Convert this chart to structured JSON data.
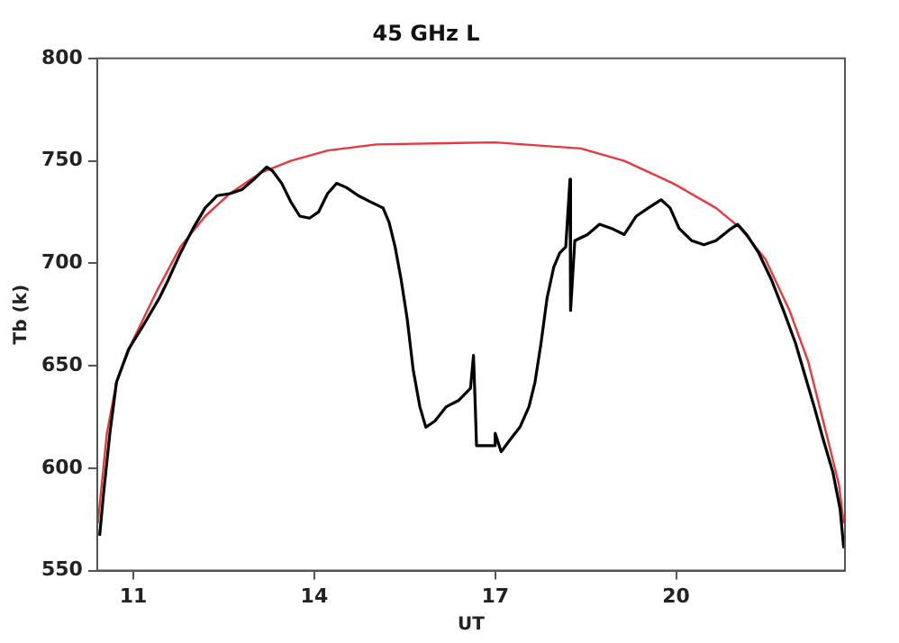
{
  "chart_data": {
    "type": "line",
    "title": "45 GHz L",
    "xlabel": "UT",
    "ylabel": "Tb (k)",
    "xlim": [
      10.4,
      22.8
    ],
    "xticks": [
      11,
      14,
      17,
      20
    ],
    "ylim": [
      550,
      800
    ],
    "yticks": [
      550,
      600,
      650,
      700,
      750,
      800
    ],
    "grid": false,
    "legend": false,
    "marker": "none",
    "line_style": "solid",
    "series": [
      {
        "color": "#000000",
        "x": [
          10.44,
          10.51,
          10.61,
          10.72,
          10.92,
          11.17,
          11.43,
          11.58,
          11.78,
          11.99,
          12.19,
          12.39,
          12.6,
          12.8,
          13.0,
          13.21,
          13.31,
          13.46,
          13.61,
          13.76,
          13.92,
          14.07,
          14.22,
          14.37,
          14.53,
          14.73,
          14.93,
          15.14,
          15.24,
          15.34,
          15.44,
          15.54,
          15.64,
          15.75,
          15.85,
          16.0,
          16.19,
          16.39,
          16.59,
          16.64,
          16.67,
          16.69,
          16.98,
          17.0,
          17.1,
          17.25,
          17.41,
          17.56,
          17.66,
          17.76,
          17.86,
          17.97,
          18.07,
          18.17,
          18.24,
          18.25,
          18.32,
          18.53,
          18.73,
          18.93,
          19.14,
          19.34,
          19.54,
          19.75,
          19.9,
          20.05,
          20.26,
          20.46,
          20.66,
          20.87,
          21.02,
          21.17,
          21.37,
          21.58,
          21.78,
          21.98,
          22.14,
          22.29,
          22.44,
          22.6,
          22.72,
          22.78
        ],
        "values": [
          567,
          589,
          617,
          642,
          658,
          670,
          683,
          692,
          705,
          717,
          727,
          733,
          734,
          736,
          741,
          747,
          745,
          739,
          730,
          723,
          722,
          725,
          734,
          739,
          737,
          733,
          730,
          727,
          720,
          708,
          692,
          673,
          648,
          630,
          620,
          623,
          630,
          633,
          639,
          655,
          630,
          611,
          611,
          617,
          608,
          614,
          620,
          630,
          642,
          661,
          683,
          698,
          705,
          708,
          741,
          677,
          711,
          714,
          719,
          717,
          714,
          723,
          727,
          731,
          727,
          717,
          711,
          709,
          711,
          716,
          719,
          714,
          705,
          692,
          677,
          661,
          645,
          630,
          614,
          598,
          580,
          561
        ]
      },
      {
        "color": "#e8383d",
        "x": [
          10.41,
          10.56,
          10.72,
          10.97,
          11.38,
          11.78,
          12.19,
          12.6,
          13.1,
          13.61,
          14.22,
          15.03,
          17.0,
          18.42,
          19.14,
          19.95,
          20.66,
          21.07,
          21.48,
          21.88,
          22.19,
          22.49,
          22.7,
          22.78
        ],
        "values": [
          573,
          617,
          642,
          661,
          686,
          708,
          723,
          734,
          744,
          750,
          755,
          758,
          759,
          756,
          750,
          739,
          727,
          717,
          702,
          677,
          652,
          617,
          592,
          573
        ]
      }
    ]
  }
}
